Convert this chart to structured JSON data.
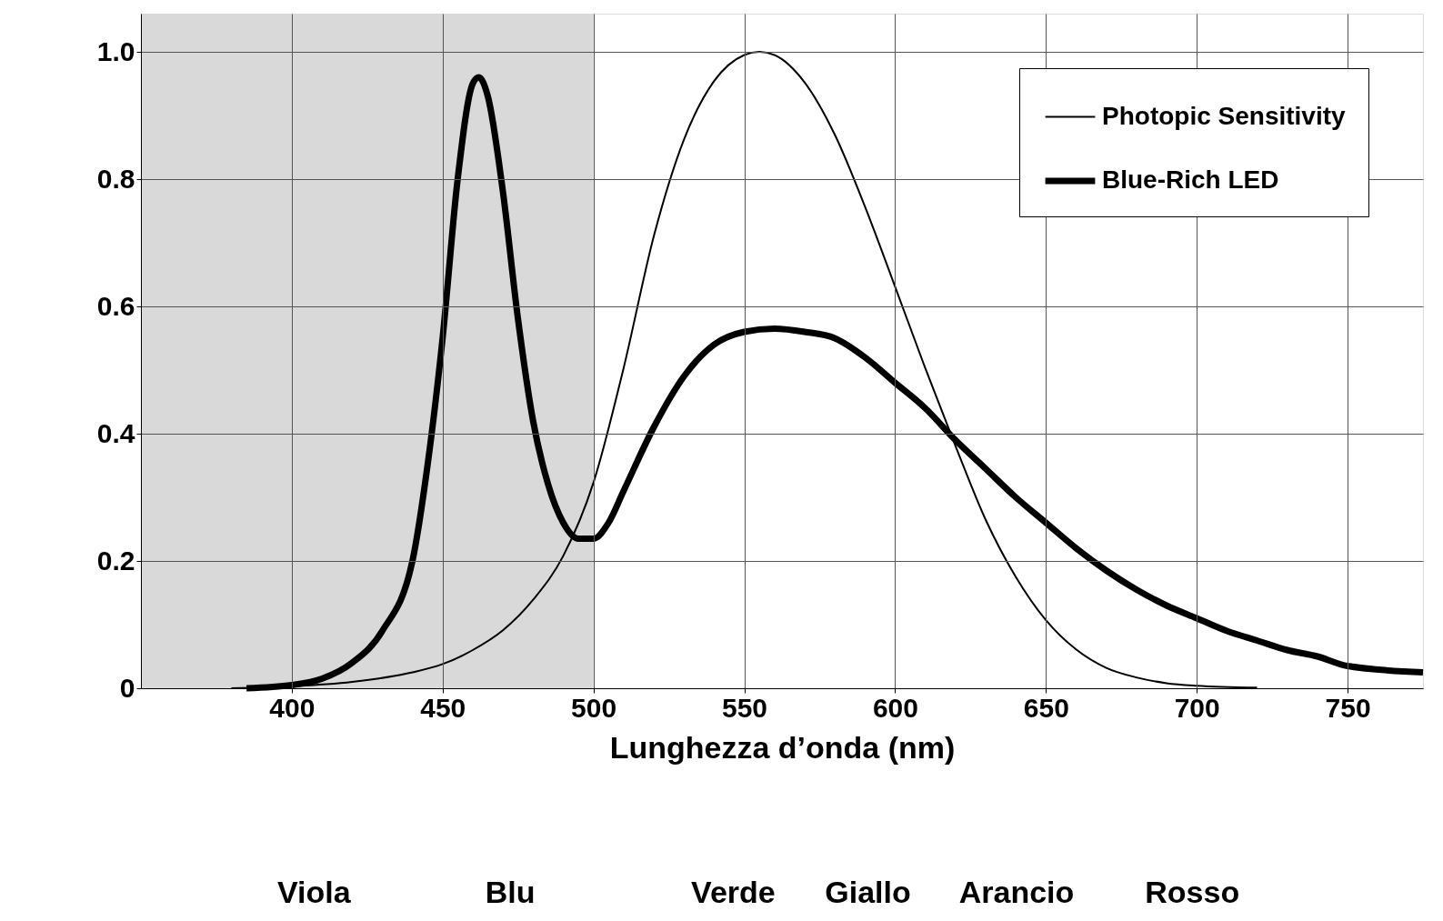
{
  "chart_data": {
    "type": "line",
    "xlabel": "Lunghezza d’onda (nm)",
    "xlim": [
      350,
      775
    ],
    "xticks": [
      400,
      450,
      500,
      550,
      600,
      650,
      700,
      750
    ],
    "ylim": [
      0,
      1.06
    ],
    "yticks": [
      0,
      {
        "value": 0.2,
        "label": "0.2"
      },
      {
        "value": 0.4,
        "label": "0.4"
      },
      {
        "value": 0.6,
        "label": "0.6"
      },
      {
        "value": 0.8,
        "label": "0.8"
      },
      {
        "value": 1,
        "label": "1.0"
      }
    ],
    "grid": true,
    "legend": "top right",
    "marker": "none",
    "line_style": "solid",
    "bands": [
      {
        "axis": "x",
        "from": 350,
        "to": 500,
        "color": "#d9d9d9"
      }
    ],
    "annotations": [
      "Viola",
      "Blu",
      "Verde",
      "Giallo",
      "Arancio",
      "Rosso"
    ],
    "series": [
      {
        "name": "Photopic Sensitivity",
        "color": "#000000",
        "x": [
          380,
          400,
          420,
          440,
          450,
          460,
          470,
          480,
          490,
          500,
          510,
          520,
          530,
          540,
          550,
          555,
          560,
          570,
          580,
          590,
          600,
          610,
          620,
          630,
          640,
          650,
          660,
          670,
          680,
          690,
          700,
          720
        ],
        "values": [
          0,
          0.003,
          0.01,
          0.025,
          0.038,
          0.06,
          0.091,
          0.139,
          0.208,
          0.323,
          0.503,
          0.71,
          0.862,
          0.954,
          0.995,
          1,
          0.995,
          0.952,
          0.87,
          0.757,
          0.631,
          0.503,
          0.381,
          0.265,
          0.175,
          0.107,
          0.061,
          0.032,
          0.017,
          0.008,
          0.004,
          0.001
        ]
      },
      {
        "name": "Blue-Rich LED",
        "color": "#000000",
        "x": [
          385,
          400,
          410,
          420,
          430,
          440,
          445,
          450,
          455,
          460,
          462,
          465,
          470,
          475,
          480,
          485,
          490,
          495,
          500,
          505,
          510,
          520,
          530,
          540,
          550,
          560,
          570,
          580,
          590,
          600,
          610,
          620,
          630,
          640,
          650,
          660,
          670,
          680,
          690,
          700,
          710,
          720,
          730,
          740,
          750,
          775
        ],
        "values": [
          0,
          0.005,
          0.015,
          0.04,
          0.09,
          0.2,
          0.35,
          0.55,
          0.8,
          0.95,
          0.96,
          0.93,
          0.78,
          0.58,
          0.42,
          0.32,
          0.26,
          0.235,
          0.235,
          0.26,
          0.31,
          0.41,
          0.49,
          0.54,
          0.56,
          0.565,
          0.56,
          0.55,
          0.52,
          0.48,
          0.44,
          0.39,
          0.345,
          0.3,
          0.26,
          0.22,
          0.185,
          0.155,
          0.13,
          0.11,
          0.09,
          0.075,
          0.06,
          0.05,
          0.035,
          0.025
        ]
      }
    ]
  }
}
